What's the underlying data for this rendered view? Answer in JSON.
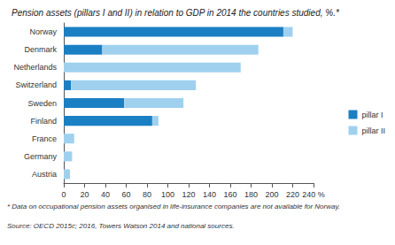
{
  "chart_data": {
    "type": "bar",
    "title": "Pension assets (pillars I and II) in relation to GDP in 2014 the countries studied, %.*",
    "orientation": "horizontal",
    "stacked": true,
    "categories": [
      "Norway",
      "Denmark",
      "Netherlands",
      "Switzerland",
      "Sweden",
      "Finland",
      "France",
      "Germany",
      "Austria"
    ],
    "series": [
      {
        "name": "pillar I",
        "color": "#1b7fc3",
        "values": [
          211,
          37,
          0,
          7,
          58,
          85,
          0,
          0,
          0
        ]
      },
      {
        "name": "pillar II",
        "color": "#9fd1ef",
        "values": [
          9,
          150,
          170,
          120,
          57,
          6,
          10,
          8,
          6
        ]
      }
    ],
    "xlim": [
      0,
      240
    ],
    "xticks": [
      0,
      20,
      40,
      60,
      80,
      100,
      120,
      140,
      160,
      180,
      200,
      220,
      {
        "value": 240,
        "label": "240 %"
      }
    ],
    "grid": false,
    "legend": "right",
    "annotations": [
      "* Data on occupational pension assets organised in life-insurance companies are not available for Norway.",
      "Source: OECD 2015c; 2016, Towers Watson 2014 and national sources."
    ]
  }
}
